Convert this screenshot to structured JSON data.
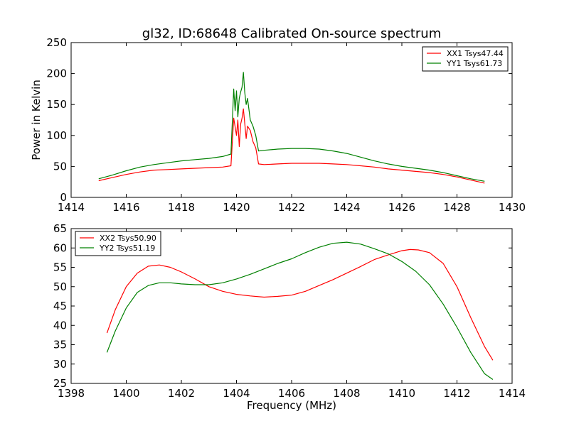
{
  "chart_data": [
    {
      "type": "line",
      "title": "gl32, ID:68648 Calibrated On-source spectrum",
      "xlabel": "",
      "ylabel": "Power in Kelvin",
      "xlim": [
        1414,
        1430
      ],
      "ylim": [
        0,
        250
      ],
      "xticks": [
        "1414",
        "1416",
        "1418",
        "1420",
        "1422",
        "1424",
        "1426",
        "1428",
        "1430"
      ],
      "yticks": [
        "0",
        "50",
        "100",
        "150",
        "200",
        "250"
      ],
      "grid": false,
      "legend_position": "top-right",
      "series": [
        {
          "name": "XX1 Tsys47.44",
          "color": "#ff0000",
          "x": [
            1415.0,
            1415.5,
            1416.0,
            1416.5,
            1417.0,
            1417.5,
            1418.0,
            1418.5,
            1419.0,
            1419.5,
            1419.8,
            1419.9,
            1420.0,
            1420.05,
            1420.1,
            1420.15,
            1420.2,
            1420.25,
            1420.3,
            1420.35,
            1420.4,
            1420.5,
            1420.6,
            1420.7,
            1420.8,
            1421.0,
            1421.5,
            1422.0,
            1422.5,
            1423.0,
            1423.5,
            1424.0,
            1424.5,
            1425.0,
            1425.5,
            1426.0,
            1426.5,
            1427.0,
            1427.5,
            1428.0,
            1428.5,
            1429.0
          ],
          "y": [
            27,
            32,
            37,
            41,
            44,
            45,
            46,
            47,
            48,
            49,
            51,
            128,
            100,
            125,
            82,
            118,
            128,
            143,
            120,
            95,
            115,
            108,
            90,
            80,
            54,
            53,
            54,
            55,
            55,
            55,
            54,
            53,
            51,
            49,
            46,
            44,
            42,
            40,
            37,
            33,
            28,
            23
          ]
        },
        {
          "name": "YY1 Tsys61.73",
          "color": "#008000",
          "x": [
            1415.0,
            1415.5,
            1416.0,
            1416.5,
            1417.0,
            1417.5,
            1418.0,
            1418.5,
            1419.0,
            1419.5,
            1419.8,
            1419.9,
            1419.95,
            1420.0,
            1420.05,
            1420.1,
            1420.15,
            1420.2,
            1420.25,
            1420.3,
            1420.35,
            1420.4,
            1420.5,
            1420.6,
            1420.7,
            1420.8,
            1421.0,
            1421.5,
            1422.0,
            1422.5,
            1423.0,
            1423.5,
            1424.0,
            1424.5,
            1425.0,
            1425.5,
            1426.0,
            1426.5,
            1427.0,
            1427.5,
            1428.0,
            1428.5,
            1429.0
          ],
          "y": [
            30,
            36,
            43,
            49,
            53,
            56,
            59,
            61,
            63,
            66,
            70,
            175,
            140,
            172,
            130,
            160,
            170,
            178,
            202,
            170,
            150,
            160,
            125,
            115,
            100,
            75,
            76,
            78,
            79,
            79,
            78,
            75,
            71,
            65,
            59,
            54,
            50,
            47,
            44,
            40,
            35,
            30,
            26
          ]
        }
      ]
    },
    {
      "type": "line",
      "title": "",
      "xlabel": "Frequency (MHz)",
      "ylabel": "",
      "xlim": [
        1398,
        1414
      ],
      "ylim": [
        25,
        65
      ],
      "xticks": [
        "1398",
        "1400",
        "1402",
        "1404",
        "1406",
        "1408",
        "1410",
        "1412",
        "1414"
      ],
      "yticks": [
        "25",
        "30",
        "35",
        "40",
        "45",
        "50",
        "55",
        "60",
        "65"
      ],
      "grid": false,
      "legend_position": "top-left",
      "series": [
        {
          "name": "XX2 Tsys50.90",
          "color": "#ff0000",
          "x": [
            1399.3,
            1399.6,
            1400.0,
            1400.4,
            1400.8,
            1401.2,
            1401.6,
            1402.0,
            1402.5,
            1403.0,
            1403.5,
            1404.0,
            1404.5,
            1405.0,
            1405.5,
            1406.0,
            1406.5,
            1407.0,
            1407.5,
            1408.0,
            1408.5,
            1409.0,
            1409.5,
            1410.0,
            1410.3,
            1410.6,
            1411.0,
            1411.5,
            1412.0,
            1412.5,
            1413.0,
            1413.3
          ],
          "y": [
            38,
            44,
            50,
            53.5,
            55.3,
            55.6,
            55,
            53.8,
            52,
            50,
            48.8,
            48,
            47.6,
            47.3,
            47.5,
            47.8,
            48.8,
            50.3,
            51.8,
            53.5,
            55.2,
            57,
            58.2,
            59.3,
            59.6,
            59.5,
            58.8,
            56,
            50,
            42,
            34.5,
            31
          ]
        },
        {
          "name": "YY2 Tsys51.19",
          "color": "#008000",
          "x": [
            1399.3,
            1399.6,
            1400.0,
            1400.4,
            1400.8,
            1401.2,
            1401.6,
            1402.0,
            1402.5,
            1403.0,
            1403.5,
            1404.0,
            1404.5,
            1405.0,
            1405.5,
            1406.0,
            1406.5,
            1407.0,
            1407.5,
            1408.0,
            1408.5,
            1409.0,
            1409.5,
            1410.0,
            1410.5,
            1411.0,
            1411.5,
            1412.0,
            1412.5,
            1413.0,
            1413.3
          ],
          "y": [
            33,
            38.5,
            44.5,
            48.5,
            50.3,
            51,
            51,
            50.7,
            50.5,
            50.5,
            51,
            52,
            53.2,
            54.6,
            56,
            57.2,
            58.8,
            60.2,
            61.2,
            61.5,
            61,
            59.8,
            58.5,
            56.5,
            54,
            50.5,
            45.5,
            39.5,
            33,
            27.5,
            26
          ]
        }
      ]
    }
  ]
}
